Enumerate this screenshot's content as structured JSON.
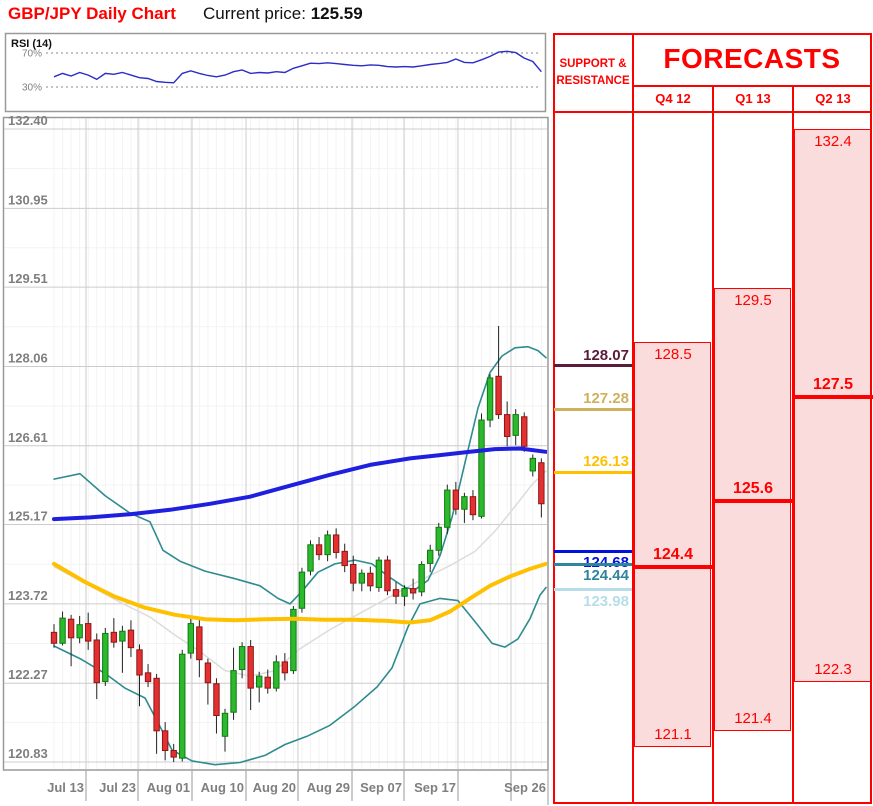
{
  "header": {
    "title": "GBP/JPY Daily Chart",
    "current_price_label": "Current price: ",
    "current_price": "125.59"
  },
  "rsi": {
    "label": "RSI (14)",
    "upper_label": "70%",
    "lower_label": "30%",
    "upper": 70,
    "lower": 30,
    "line_color": "#2C2CC8",
    "values": [
      42,
      46,
      43,
      47,
      44,
      39,
      46,
      45,
      47,
      44,
      41,
      40,
      36.5,
      35.5,
      35,
      46,
      49,
      46,
      43.5,
      42,
      44,
      48,
      50,
      46,
      47,
      46.5,
      48,
      47,
      52,
      55,
      58,
      57.5,
      58.5,
      57.5,
      56.5,
      55.5,
      55,
      56,
      55.5,
      54,
      53.5,
      54,
      53.5,
      55,
      56.5,
      57.5,
      59,
      63,
      59,
      58.5,
      62,
      66,
      71,
      72,
      70.5,
      64,
      60,
      48
    ]
  },
  "support_resistance": {
    "title": "SUPPORT & RESISTANCE",
    "levels": [
      {
        "label": "128.07",
        "value": 128.07,
        "color": "#5B1B3B",
        "label_side": "above"
      },
      {
        "label": "127.28",
        "value": 127.28,
        "color": "#CFB05F",
        "label_side": "above"
      },
      {
        "label": "126.13",
        "value": 126.13,
        "color": "#FFC000",
        "label_side": "above"
      },
      {
        "label": "124.68",
        "value": 124.68,
        "color": "#0010E0",
        "label_side": "below"
      },
      {
        "label": "124.44",
        "value": 124.44,
        "color": "#31849B",
        "label_side": "below"
      },
      {
        "label": "123.98",
        "value": 123.98,
        "color": "#B7DEE8",
        "label_side": "below"
      }
    ]
  },
  "forecasts": {
    "title": "FORECASTS",
    "fill_color": "#FBDCDC",
    "line_color": "#FF0000",
    "quarters": [
      {
        "label": "Q4 12",
        "high": 128.5,
        "mid": 124.4,
        "low": 121.1,
        "high_label": "128.5",
        "mid_label": "124.4",
        "low_label": "121.1"
      },
      {
        "label": "Q1 13",
        "high": 129.5,
        "mid": 125.6,
        "low": 121.4,
        "high_label": "129.5",
        "mid_label": "125.6",
        "low_label": "121.4"
      },
      {
        "label": "Q2 13",
        "high": 132.4,
        "mid": 127.5,
        "low": 122.3,
        "high_label": "132.4",
        "mid_label": "127.5",
        "low_label": "122.3"
      }
    ]
  },
  "chart_data": {
    "type": "candlestick",
    "title": "GBP/JPY Daily Chart",
    "current_price": 125.59,
    "y_axis": {
      "tick_labels": [
        "132.40",
        "130.95",
        "129.51",
        "128.06",
        "126.61",
        "125.17",
        "123.72",
        "122.27",
        "120.83"
      ],
      "range": [
        120.83,
        132.4
      ],
      "grid": true
    },
    "x_axis": {
      "labels": [
        "Jul 13",
        "Jul 23",
        "Aug 01",
        "Aug 10",
        "Aug 20",
        "Aug 29",
        "Sep 07",
        "Sep 17",
        "Sep 26"
      ],
      "positions": [
        86,
        138,
        192,
        246,
        298,
        352,
        404,
        458,
        511
      ],
      "label_right_edges": [
        84,
        136,
        190,
        244,
        296,
        350,
        402,
        456,
        546
      ]
    },
    "dates": [
      "Jul 9",
      "Jul 10",
      "Jul 11",
      "Jul 12",
      "Jul 13",
      "Jul 16",
      "Jul 17",
      "Jul 18",
      "Jul 19",
      "Jul 20",
      "Jul 23",
      "Jul 24",
      "Jul 25",
      "Jul 26",
      "Jul 27",
      "Jul 30",
      "Jul 31",
      "Aug 1",
      "Aug 2",
      "Aug 3",
      "Aug 6",
      "Aug 7",
      "Aug 8",
      "Aug 9",
      "Aug 10",
      "Aug 13",
      "Aug 14",
      "Aug 15",
      "Aug 16",
      "Aug 17",
      "Aug 20",
      "Aug 21",
      "Aug 22",
      "Aug 23",
      "Aug 24",
      "Aug 27",
      "Aug 28",
      "Aug 29",
      "Aug 30",
      "Aug 31",
      "Sep 3",
      "Sep 4",
      "Sep 5",
      "Sep 6",
      "Sep 7",
      "Sep 10",
      "Sep 11",
      "Sep 12",
      "Sep 13",
      "Sep 14",
      "Sep 17",
      "Sep 18",
      "Sep 19",
      "Sep 20",
      "Sep 21",
      "Sep 24",
      "Sep 25",
      "Sep 26"
    ],
    "ohlc": [
      [
        123.2,
        123.35,
        122.92,
        123.0
      ],
      [
        123.0,
        123.58,
        122.96,
        123.46
      ],
      [
        123.44,
        123.52,
        122.58,
        123.1
      ],
      [
        123.1,
        123.5,
        123.0,
        123.34
      ],
      [
        123.36,
        123.56,
        122.88,
        123.04
      ],
      [
        123.06,
        123.18,
        121.98,
        122.28
      ],
      [
        122.3,
        123.28,
        122.22,
        123.18
      ],
      [
        123.2,
        123.46,
        122.92,
        123.02
      ],
      [
        123.04,
        123.32,
        122.46,
        123.22
      ],
      [
        123.24,
        123.42,
        122.75,
        122.92
      ],
      [
        122.88,
        122.98,
        121.85,
        122.42
      ],
      [
        122.46,
        122.62,
        122.2,
        122.3
      ],
      [
        122.36,
        122.44,
        120.98,
        121.4
      ],
      [
        121.4,
        121.56,
        120.86,
        121.04
      ],
      [
        121.04,
        121.16,
        120.83,
        120.92
      ],
      [
        120.9,
        122.88,
        120.84,
        122.8
      ],
      [
        122.82,
        123.46,
        122.72,
        123.36
      ],
      [
        123.3,
        123.44,
        122.38,
        122.7
      ],
      [
        122.64,
        122.72,
        121.88,
        122.28
      ],
      [
        122.26,
        122.36,
        121.35,
        121.68
      ],
      [
        121.3,
        121.8,
        121.02,
        121.72
      ],
      [
        121.74,
        122.92,
        121.6,
        122.5
      ],
      [
        122.52,
        123.02,
        122.36,
        122.94
      ],
      [
        122.94,
        123.06,
        121.78,
        122.18
      ],
      [
        122.2,
        122.48,
        121.92,
        122.4
      ],
      [
        122.38,
        122.52,
        122.08,
        122.18
      ],
      [
        122.18,
        122.78,
        122.12,
        122.66
      ],
      [
        122.66,
        122.82,
        122.32,
        122.46
      ],
      [
        122.5,
        123.68,
        122.44,
        123.62
      ],
      [
        123.64,
        124.38,
        123.56,
        124.3
      ],
      [
        124.32,
        124.88,
        124.24,
        124.8
      ],
      [
        124.8,
        124.94,
        124.52,
        124.62
      ],
      [
        124.62,
        125.06,
        124.5,
        124.98
      ],
      [
        124.98,
        125.1,
        124.55,
        124.66
      ],
      [
        124.68,
        124.82,
        124.3,
        124.42
      ],
      [
        124.44,
        124.6,
        123.95,
        124.1
      ],
      [
        124.1,
        124.35,
        123.95,
        124.28
      ],
      [
        124.28,
        124.4,
        123.95,
        124.05
      ],
      [
        124.02,
        124.58,
        123.94,
        124.52
      ],
      [
        124.52,
        124.6,
        123.88,
        123.96
      ],
      [
        123.98,
        124.12,
        123.72,
        123.86
      ],
      [
        123.86,
        124.06,
        123.68,
        124.0
      ],
      [
        124.0,
        124.18,
        123.8,
        123.92
      ],
      [
        123.94,
        124.5,
        123.86,
        124.44
      ],
      [
        124.46,
        124.8,
        124.3,
        124.7
      ],
      [
        124.7,
        125.2,
        124.6,
        125.12
      ],
      [
        125.12,
        125.9,
        125.0,
        125.8
      ],
      [
        125.8,
        125.95,
        125.35,
        125.45
      ],
      [
        125.45,
        125.75,
        125.2,
        125.68
      ],
      [
        125.68,
        125.8,
        125.25,
        125.35
      ],
      [
        125.32,
        127.2,
        125.28,
        127.08
      ],
      [
        127.08,
        127.92,
        126.95,
        127.85
      ],
      [
        127.88,
        128.8,
        127.1,
        127.18
      ],
      [
        127.18,
        127.42,
        126.6,
        126.78
      ],
      [
        126.8,
        127.28,
        126.62,
        127.18
      ],
      [
        127.14,
        127.22,
        126.5,
        126.6
      ],
      [
        126.15,
        126.45,
        126.05,
        126.38
      ],
      [
        126.3,
        126.38,
        125.3,
        125.55
      ]
    ],
    "overlays": {
      "ma_slow_blue": [
        [
          54,
          125.27
        ],
        [
          90,
          125.3
        ],
        [
          130,
          125.36
        ],
        [
          170,
          125.44
        ],
        [
          210,
          125.55
        ],
        [
          250,
          125.68
        ],
        [
          290,
          125.88
        ],
        [
          330,
          126.08
        ],
        [
          370,
          126.26
        ],
        [
          410,
          126.38
        ],
        [
          440,
          126.44
        ],
        [
          470,
          126.5
        ],
        [
          495,
          126.55
        ],
        [
          520,
          126.56
        ],
        [
          546,
          126.5
        ]
      ],
      "ma_fast_yellow": [
        [
          54,
          124.45
        ],
        [
          85,
          124.12
        ],
        [
          115,
          123.85
        ],
        [
          145,
          123.65
        ],
        [
          175,
          123.52
        ],
        [
          205,
          123.44
        ],
        [
          235,
          123.42
        ],
        [
          265,
          123.44
        ],
        [
          295,
          123.45
        ],
        [
          325,
          123.43
        ],
        [
          355,
          123.43
        ],
        [
          385,
          123.41
        ],
        [
          410,
          123.38
        ],
        [
          430,
          123.42
        ],
        [
          450,
          123.58
        ],
        [
          470,
          123.82
        ],
        [
          490,
          124.05
        ],
        [
          510,
          124.22
        ],
        [
          530,
          124.36
        ],
        [
          546,
          124.45
        ]
      ],
      "bb_upper_teal": [
        [
          54,
          126.0
        ],
        [
          80,
          126.1
        ],
        [
          105,
          125.7
        ],
        [
          130,
          125.38
        ],
        [
          150,
          125.22
        ],
        [
          163,
          124.7
        ],
        [
          180,
          124.5
        ],
        [
          205,
          124.32
        ],
        [
          235,
          124.18
        ],
        [
          260,
          124.05
        ],
        [
          278,
          123.82
        ],
        [
          290,
          123.72
        ],
        [
          302,
          123.95
        ],
        [
          318,
          124.3
        ],
        [
          335,
          124.45
        ],
        [
          355,
          124.52
        ],
        [
          372,
          124.45
        ],
        [
          390,
          124.2
        ],
        [
          405,
          124.02
        ],
        [
          415,
          123.98
        ],
        [
          428,
          124.15
        ],
        [
          440,
          124.6
        ],
        [
          452,
          125.3
        ],
        [
          465,
          126.3
        ],
        [
          478,
          127.3
        ],
        [
          490,
          127.95
        ],
        [
          502,
          128.25
        ],
        [
          515,
          128.4
        ],
        [
          528,
          128.42
        ],
        [
          538,
          128.35
        ],
        [
          546,
          128.22
        ]
      ],
      "bb_lower_teal": [
        [
          54,
          122.95
        ],
        [
          80,
          122.72
        ],
        [
          105,
          122.45
        ],
        [
          125,
          122.18
        ],
        [
          145,
          122.0
        ],
        [
          158,
          121.55
        ],
        [
          172,
          121.05
        ],
        [
          192,
          120.85
        ],
        [
          215,
          120.78
        ],
        [
          240,
          120.82
        ],
        [
          265,
          120.95
        ],
        [
          285,
          121.15
        ],
        [
          307,
          121.3
        ],
        [
          330,
          121.5
        ],
        [
          355,
          121.85
        ],
        [
          377,
          122.2
        ],
        [
          392,
          122.55
        ],
        [
          408,
          123.3
        ],
        [
          420,
          123.72
        ],
        [
          440,
          123.82
        ],
        [
          458,
          123.78
        ],
        [
          477,
          123.35
        ],
        [
          492,
          123.0
        ],
        [
          505,
          122.93
        ],
        [
          518,
          123.08
        ],
        [
          530,
          123.45
        ],
        [
          540,
          123.88
        ],
        [
          546,
          124.02
        ]
      ],
      "bb_mid_gray": [
        [
          54,
          124.4
        ],
        [
          90,
          124.05
        ],
        [
          120,
          123.75
        ],
        [
          150,
          123.48
        ],
        [
          175,
          123.15
        ],
        [
          200,
          122.85
        ],
        [
          225,
          122.5
        ],
        [
          250,
          122.4
        ],
        [
          275,
          122.5
        ],
        [
          300,
          122.9
        ],
        [
          330,
          123.25
        ],
        [
          360,
          123.55
        ],
        [
          390,
          123.85
        ],
        [
          420,
          124.15
        ],
        [
          450,
          124.42
        ],
        [
          475,
          124.68
        ],
        [
          495,
          125.05
        ],
        [
          515,
          125.5
        ],
        [
          532,
          125.9
        ],
        [
          546,
          126.15
        ]
      ]
    },
    "colors": {
      "up_fill": "#2DB92D",
      "up_stroke": "#0E7A0E",
      "down_fill": "#E33030",
      "down_stroke": "#8F1616",
      "wick": "#222222",
      "grid_major": "#CCCCCC",
      "grid_minor": "#F3F3F3",
      "axis_text": "#7F7F7F",
      "border": "#999999",
      "ma_slow": "#1F1FE0",
      "ma_fast": "#FFC000",
      "band": "#2E8B8F",
      "band_mid": "#DCDCDC"
    }
  }
}
